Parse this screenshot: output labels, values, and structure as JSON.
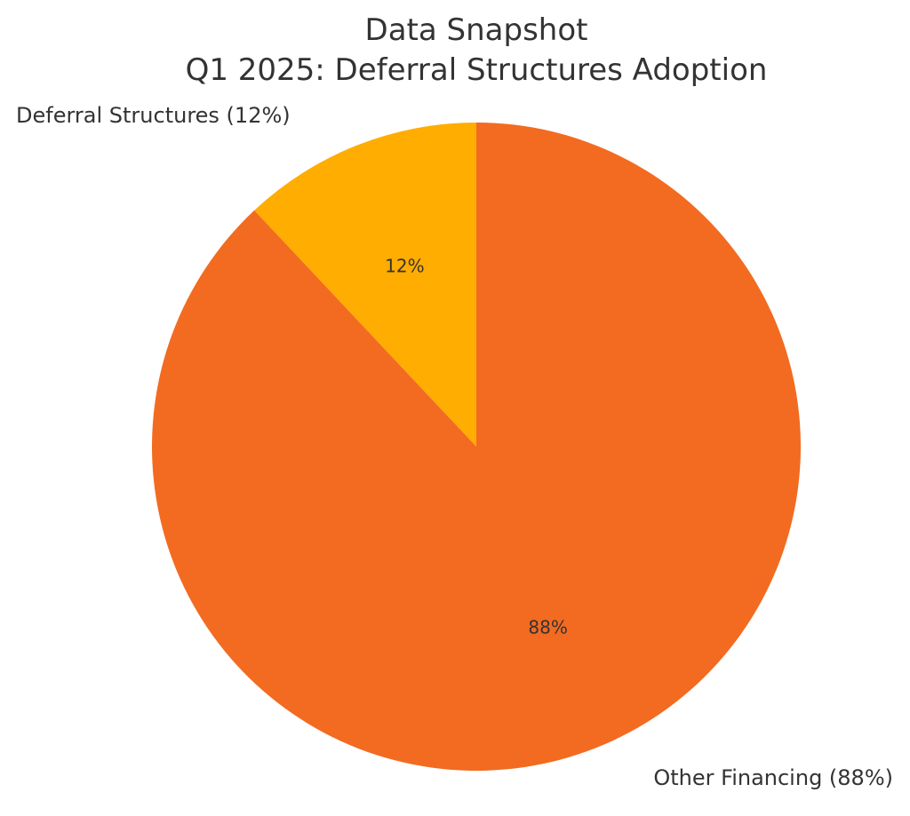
{
  "chart_data": {
    "type": "pie",
    "title": "Data Snapshot",
    "subtitle": "Q1 2025: Deferral Structures Adoption",
    "slices": [
      {
        "label": "Deferral Structures",
        "outer_label": "Deferral Structures (12%)",
        "value": 12,
        "pct_label": "12%",
        "color": "#ffad00"
      },
      {
        "label": "Other Financing",
        "outer_label": "Other Financing (88%)",
        "value": 88,
        "pct_label": "88%",
        "color": "#f26b21"
      }
    ],
    "start_angle": "top",
    "direction": "counterclockwise",
    "legend": false,
    "grid": false
  }
}
